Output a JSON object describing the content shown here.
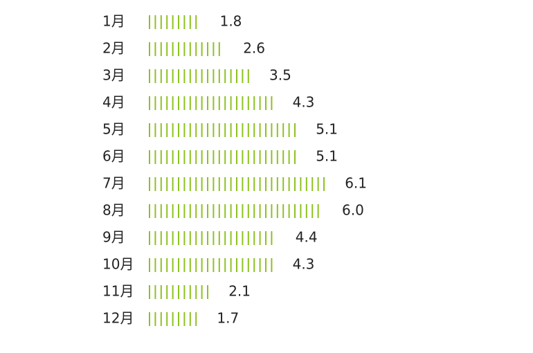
{
  "chart_data": {
    "type": "bar",
    "style": "tally",
    "categories": [
      "1月",
      "2月",
      "3月",
      "4月",
      "5月",
      "6月",
      "7月",
      "8月",
      "9月",
      "10月",
      "11月",
      "12月"
    ],
    "values": [
      1.8,
      2.6,
      3.5,
      4.3,
      5.1,
      5.1,
      6.1,
      6.0,
      4.4,
      4.3,
      2.1,
      1.7
    ],
    "value_labels": [
      "1.8",
      "2.6",
      "3.5",
      "4.3",
      "5.1",
      "5.1",
      "6.1",
      "6.0",
      "4.4",
      "4.3",
      "2.1",
      "1.7"
    ],
    "color": "#8dc21f"
  }
}
